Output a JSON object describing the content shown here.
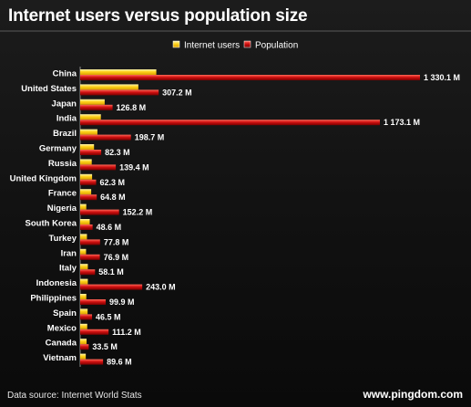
{
  "chart_data": {
    "type": "bar",
    "orientation": "horizontal",
    "title": "Internet users versus population size",
    "categories": [
      "China",
      "United States",
      "Japan",
      "India",
      "Brazil",
      "Germany",
      "Russia",
      "United Kingdom",
      "France",
      "Nigeria",
      "South Korea",
      "Turkey",
      "Iran",
      "Italy",
      "Indonesia",
      "Philippines",
      "Spain",
      "Mexico",
      "Canada",
      "Vietnam"
    ],
    "series": [
      {
        "name": "Internet users",
        "color": "#ffd21a",
        "values": [
          298.0,
          227.7,
          95.9,
          81.0,
          67.5,
          54.2,
          45.3,
          46.7,
          43.1,
          23.9,
          37.5,
          26.5,
          23.0,
          30.0,
          30.0,
          24.0,
          29.1,
          27.6,
          25.1,
          21.9
        ]
      },
      {
        "name": "Population",
        "color": "#d01010",
        "values": [
          1330.1,
          307.2,
          126.8,
          1173.1,
          198.7,
          82.3,
          139.4,
          62.3,
          64.8,
          152.2,
          48.6,
          77.8,
          76.9,
          58.1,
          243.0,
          99.9,
          46.5,
          111.2,
          33.5,
          89.6
        ],
        "labels": [
          "1 330.1 M",
          "307.2 M",
          "126.8 M",
          "1 173.1 M",
          "198.7 M",
          "82.3 M",
          "139.4 M",
          "62.3 M",
          "64.8 M",
          "152.2 M",
          "48.6 M",
          "77.8 M",
          "76.9 M",
          "58.1 M",
          "243.0 M",
          "99.9 M",
          "46.5 M",
          "111.2 M",
          "33.5 M",
          "89.6 M"
        ]
      }
    ],
    "xlim": [
      0,
      1330.1
    ],
    "grid": false,
    "legend": "top-center"
  },
  "footer": {
    "source": "Data source: Internet World Stats",
    "credit": "www.pingdom.com"
  }
}
